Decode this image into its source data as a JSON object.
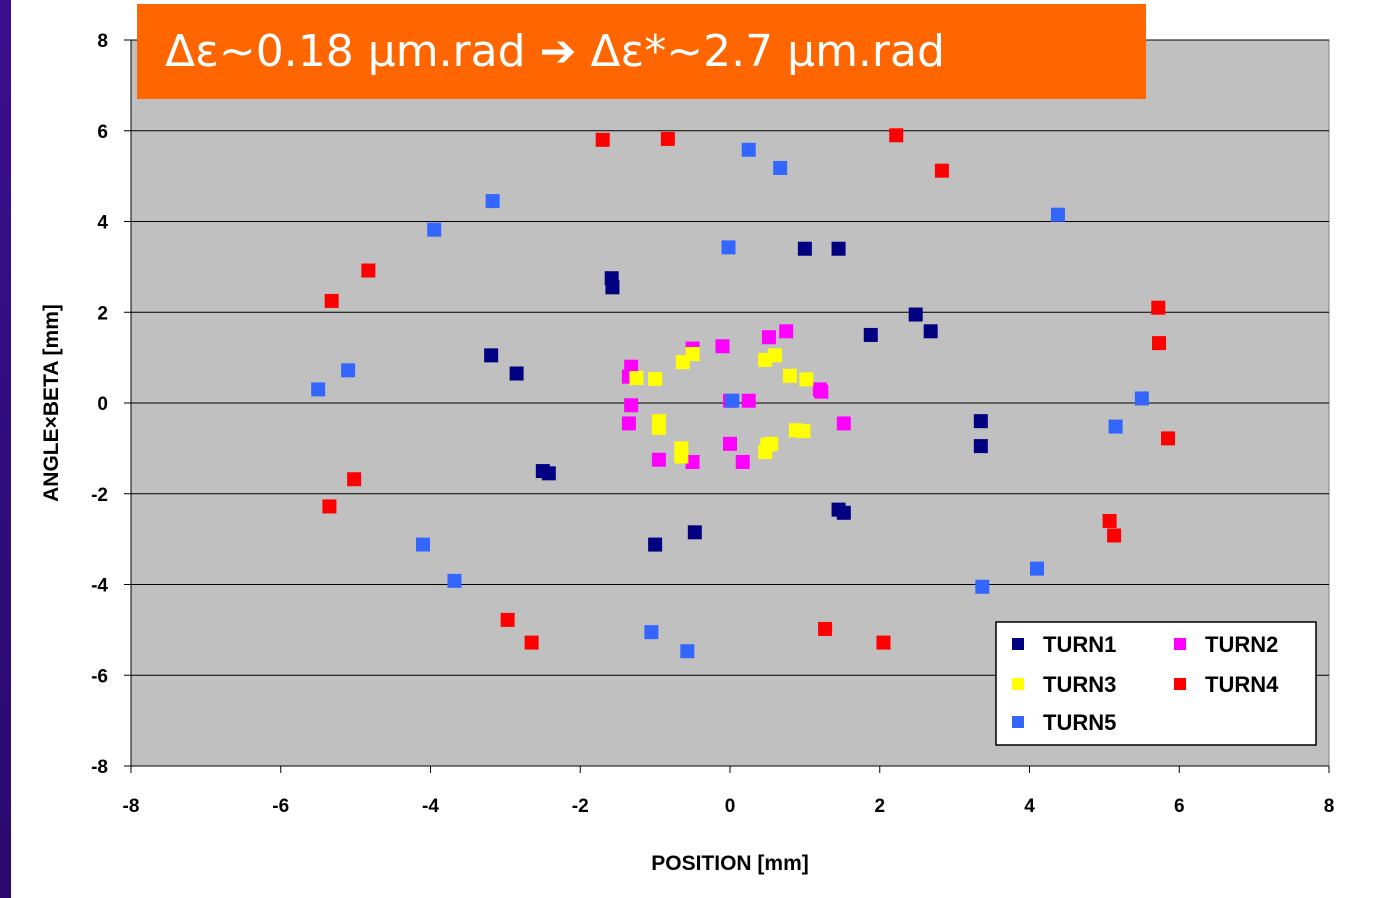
{
  "banner_text": "Δε~0.18 μm.rad ➔ Δε*~2.7 μm.rad",
  "chart_data": {
    "type": "scatter",
    "xlabel": "POSITION [mm]",
    "ylabel": "ANGLE×BETA [mm]",
    "xlim": [
      -8,
      8
    ],
    "ylim": [
      -8,
      8
    ],
    "xticks": [
      -8,
      -6,
      -4,
      -2,
      0,
      2,
      4,
      6,
      8
    ],
    "yticks": [
      -8,
      -6,
      -4,
      -2,
      0,
      2,
      4,
      6,
      8
    ],
    "grid": "horizontal",
    "plot_background": "#c0c0c0",
    "legend_position": "bottom-right",
    "series": [
      {
        "name": "TURN1",
        "color": "#000080",
        "points": [
          [
            1.0,
            3.4
          ],
          [
            1.45,
            3.4
          ],
          [
            -1.58,
            2.75
          ],
          [
            -1.57,
            2.55
          ],
          [
            2.48,
            1.95
          ],
          [
            2.68,
            1.58
          ],
          [
            1.88,
            1.5
          ],
          [
            -3.19,
            1.05
          ],
          [
            -2.85,
            0.65
          ],
          [
            3.35,
            -0.4
          ],
          [
            3.35,
            -0.95
          ],
          [
            -2.5,
            -1.5
          ],
          [
            -2.42,
            -1.55
          ],
          [
            1.45,
            -2.35
          ],
          [
            1.52,
            -2.42
          ],
          [
            -1.0,
            -3.12
          ],
          [
            -0.47,
            -2.85
          ]
        ]
      },
      {
        "name": "TURN2",
        "color": "#ff00ff",
        "points": [
          [
            0.75,
            1.58
          ],
          [
            0.52,
            1.45
          ],
          [
            -0.1,
            1.25
          ],
          [
            -0.5,
            1.2
          ],
          [
            -1.32,
            0.8
          ],
          [
            -1.35,
            0.58
          ],
          [
            -1.32,
            -0.05
          ],
          [
            -1.35,
            -0.45
          ],
          [
            1.2,
            0.3
          ],
          [
            1.22,
            0.25
          ],
          [
            0.0,
            0.05
          ],
          [
            0.25,
            0.05
          ],
          [
            1.52,
            -0.45
          ],
          [
            0.0,
            -0.9
          ],
          [
            -0.95,
            -1.25
          ],
          [
            -0.5,
            -1.3
          ],
          [
            0.17,
            -1.3
          ]
        ]
      },
      {
        "name": "TURN3",
        "color": "#ffff00",
        "points": [
          [
            0.6,
            1.05
          ],
          [
            -0.5,
            1.08
          ],
          [
            0.47,
            0.95
          ],
          [
            -0.63,
            0.9
          ],
          [
            -1.25,
            0.55
          ],
          [
            -1.0,
            0.53
          ],
          [
            0.8,
            0.6
          ],
          [
            1.02,
            0.52
          ],
          [
            -0.95,
            -0.4
          ],
          [
            -0.95,
            -0.55
          ],
          [
            0.88,
            -0.6
          ],
          [
            0.98,
            -0.62
          ],
          [
            0.5,
            -0.92
          ],
          [
            0.55,
            -0.9
          ],
          [
            -0.65,
            -1.0
          ],
          [
            -0.65,
            -1.18
          ],
          [
            0.47,
            -1.08
          ]
        ]
      },
      {
        "name": "TURN4",
        "color": "#ff0000",
        "points": [
          [
            -1.7,
            5.8
          ],
          [
            -0.83,
            5.82
          ],
          [
            2.22,
            5.9
          ],
          [
            2.83,
            5.12
          ],
          [
            -4.83,
            2.92
          ],
          [
            -5.32,
            2.25
          ],
          [
            5.72,
            2.1
          ],
          [
            5.73,
            1.32
          ],
          [
            5.85,
            -0.78
          ],
          [
            -5.02,
            -1.68
          ],
          [
            -5.35,
            -2.28
          ],
          [
            5.07,
            -2.6
          ],
          [
            5.13,
            -2.92
          ],
          [
            -2.97,
            -4.78
          ],
          [
            -2.65,
            -5.28
          ],
          [
            1.27,
            -4.98
          ],
          [
            2.05,
            -5.28
          ]
        ]
      },
      {
        "name": "TURN5",
        "color": "#3366ff",
        "points": [
          [
            0.25,
            5.58
          ],
          [
            0.67,
            5.18
          ],
          [
            -3.17,
            4.45
          ],
          [
            -3.95,
            3.82
          ],
          [
            -0.02,
            3.43
          ],
          [
            4.38,
            4.15
          ],
          [
            -5.1,
            0.72
          ],
          [
            -5.5,
            0.3
          ],
          [
            0.03,
            0.05
          ],
          [
            5.5,
            0.1
          ],
          [
            5.15,
            -0.52
          ],
          [
            -4.1,
            -3.12
          ],
          [
            -3.68,
            -3.92
          ],
          [
            3.37,
            -4.05
          ],
          [
            4.1,
            -3.65
          ],
          [
            -1.05,
            -5.05
          ],
          [
            -0.57,
            -5.47
          ]
        ]
      }
    ]
  }
}
